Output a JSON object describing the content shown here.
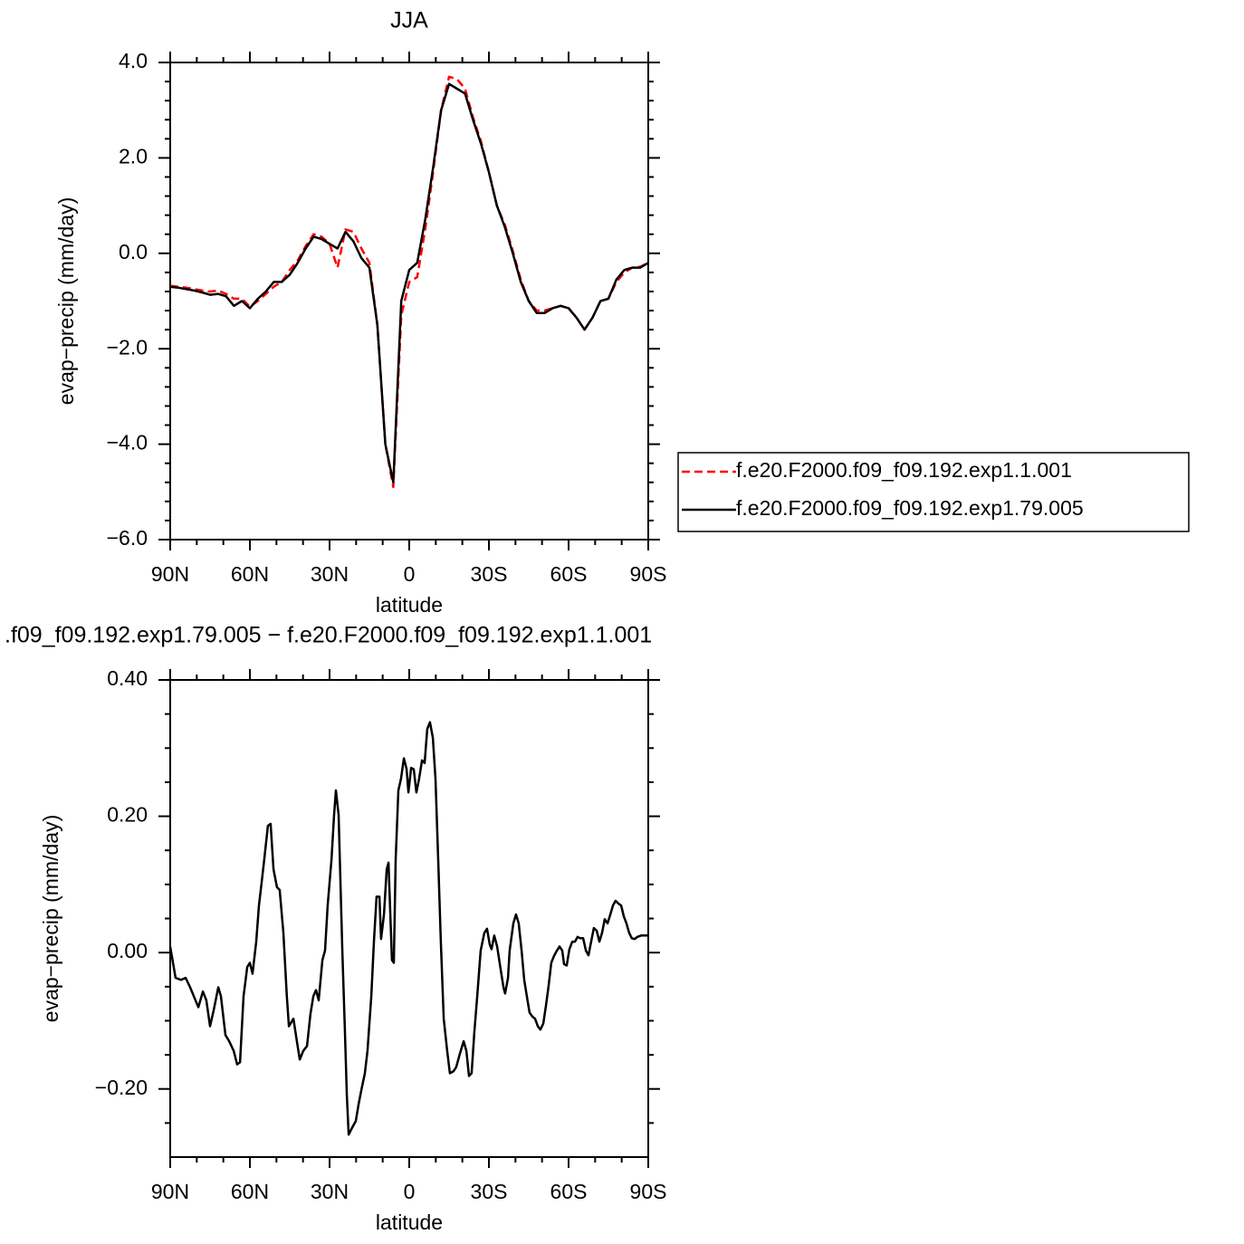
{
  "chart_data": [
    {
      "type": "line",
      "title": "JJA",
      "xlabel": "latitude",
      "ylabel": "evap−precip (mm/day)",
      "xlim": [
        90,
        -90
      ],
      "xticks": [
        {
          "value": 90,
          "label": "90N"
        },
        {
          "value": 60,
          "label": "60N"
        },
        {
          "value": 30,
          "label": "30N"
        },
        0,
        {
          "value": -30,
          "label": "30S"
        },
        {
          "value": -60,
          "label": "60S"
        },
        {
          "value": -90,
          "label": "90S"
        }
      ],
      "xminorticks": [
        80,
        70,
        50,
        40,
        20,
        10,
        -10,
        -20,
        -40,
        -50,
        -70,
        -80
      ],
      "ylim": [
        -6,
        4
      ],
      "yticks": [
        {
          "value": -6,
          "label": "−6.0"
        },
        {
          "value": -4,
          "label": "−4.0"
        },
        {
          "value": -2,
          "label": "−2.0"
        },
        {
          "value": 0,
          "label": "0.0"
        },
        {
          "value": 2,
          "label": "2.0"
        },
        {
          "value": 4,
          "label": "4.0"
        }
      ],
      "yminorticks": [
        3.6,
        3.2,
        2.8,
        2.4,
        1.6,
        1.2,
        0.8,
        0.4,
        -0.4,
        -0.8,
        -1.2,
        -1.6,
        -2.4,
        -2.8,
        -3.2,
        -3.6,
        -4.4,
        -4.8,
        -5.2,
        -5.6
      ],
      "legend": "right",
      "x": [
        90,
        87,
        84,
        81,
        78,
        75,
        72,
        69,
        66,
        63,
        60,
        57,
        54,
        51,
        48,
        45,
        42,
        39,
        36,
        33,
        30,
        27,
        24,
        21,
        18,
        15,
        12,
        9,
        6,
        3,
        0,
        -3,
        -6,
        -9,
        -12,
        -15,
        -18,
        -21,
        -24,
        -27,
        -30,
        -33,
        -36,
        -39,
        -42,
        -45,
        -48,
        -51,
        -54,
        -57,
        -60,
        -63,
        -66,
        -69,
        -72,
        -75,
        -78,
        -81,
        -84,
        -87,
        -90
      ],
      "series": [
        {
          "name": "f.e20.F2000.f09_f09.192.exp1.1.001",
          "color": "#ff0000",
          "linestyle": "dashed",
          "values": [
            -0.68,
            -0.7,
            -0.72,
            -0.75,
            -0.78,
            -0.8,
            -0.78,
            -0.85,
            -0.95,
            -0.95,
            -1.12,
            -1.0,
            -0.85,
            -0.7,
            -0.6,
            -0.35,
            -0.15,
            0.15,
            0.4,
            0.35,
            0.2,
            -0.3,
            0.5,
            0.45,
            0.1,
            -0.2,
            -1.5,
            -4.0,
            -4.9,
            -1.3,
            -0.6,
            -0.5,
            0.5,
            1.7,
            3.0,
            3.7,
            3.65,
            3.45,
            2.85,
            2.35,
            1.7,
            1.0,
            0.6,
            0.05,
            -0.55,
            -1.0,
            -1.2,
            -1.2,
            -1.15,
            -1.1,
            -1.15,
            -1.35,
            -1.6,
            -1.35,
            -1.0,
            -0.95,
            -0.6,
            -0.4,
            -0.3,
            -0.28,
            -0.2
          ]
        },
        {
          "name": "f.e20.F2000.f09_f09.192.exp1.79.005",
          "color": "#000000",
          "linestyle": "solid",
          "values": [
            -0.7,
            -0.72,
            -0.75,
            -0.78,
            -0.82,
            -0.87,
            -0.85,
            -0.9,
            -1.1,
            -1.0,
            -1.15,
            -0.95,
            -0.8,
            -0.6,
            -0.6,
            -0.45,
            -0.2,
            0.1,
            0.35,
            0.3,
            0.2,
            0.1,
            0.45,
            0.25,
            -0.1,
            -0.3,
            -1.5,
            -4.0,
            -4.8,
            -1.0,
            -0.35,
            -0.2,
            0.7,
            1.8,
            3.0,
            3.55,
            3.45,
            3.35,
            2.8,
            2.3,
            1.7,
            1.0,
            0.55,
            0.0,
            -0.6,
            -1.0,
            -1.25,
            -1.25,
            -1.15,
            -1.1,
            -1.15,
            -1.35,
            -1.6,
            -1.35,
            -1.0,
            -0.95,
            -0.55,
            -0.35,
            -0.3,
            -0.3,
            -0.2
          ]
        }
      ]
    },
    {
      "type": "line",
      "title": ".f09_f09.192.exp1.79.005 − f.e20.F2000.f09_f09.192.exp1.1.001",
      "xlabel": "latitude",
      "ylabel": "evap−precip (mm/day)",
      "xlim": [
        90,
        -90
      ],
      "xticks": [
        {
          "value": 90,
          "label": "90N"
        },
        {
          "value": 60,
          "label": "60N"
        },
        {
          "value": 30,
          "label": "30N"
        },
        0,
        {
          "value": -30,
          "label": "30S"
        },
        {
          "value": -60,
          "label": "60S"
        },
        {
          "value": -90,
          "label": "90S"
        }
      ],
      "xminorticks": [
        80,
        70,
        50,
        40,
        20,
        10,
        -10,
        -20,
        -40,
        -50,
        -70,
        -80
      ],
      "ylim": [
        -0.3,
        0.4
      ],
      "yticks": [
        {
          "value": -0.2,
          "label": "−0.20"
        },
        {
          "value": 0,
          "label": "0.00"
        },
        {
          "value": 0.2,
          "label": "0.20"
        },
        {
          "value": 0.4,
          "label": "0.40"
        }
      ],
      "yminorticks": [
        0.35,
        0.3,
        0.25,
        0.15,
        0.1,
        0.05,
        -0.05,
        -0.1,
        -0.15,
        -0.25
      ],
      "color": "#000000",
      "x": [
        90,
        88.0,
        85.9,
        84.2,
        82.5,
        80.5,
        79.4,
        77.7,
        76.4,
        75.0,
        73.6,
        71.9,
        70.9,
        69.2,
        67.8,
        66.1,
        64.8,
        63.7,
        62.4,
        61.0,
        60.0,
        59.0,
        57.6,
        56.6,
        55.6,
        54.6,
        53.2,
        52.2,
        51.1,
        49.8,
        48.8,
        47.4,
        46.1,
        45.3,
        43.6,
        42.3,
        41.2,
        39.9,
        38.5,
        37.2,
        36.1,
        35.1,
        34.1,
        32.7,
        31.7,
        30.7,
        29.3,
        28.3,
        27.6,
        26.6,
        25.2,
        24.2,
        23.5,
        22.8,
        21.5,
        20.1,
        19.1,
        18.1,
        16.7,
        15.7,
        14.3,
        13.3,
        12.3,
        11.2,
        10.6,
        9.5,
        8.5,
        7.8,
        6.5,
        5.8,
        5.1,
        4.1,
        3.1,
        2.0,
        1.0,
        0.3,
        -0.7,
        -1.7,
        -2.7,
        -3.7,
        -4.8,
        -5.8,
        -6.8,
        -7.8,
        -8.9,
        -9.9,
        -10.9,
        -11.9,
        -13.0,
        -14.3,
        -15.3,
        -16.7,
        -17.7,
        -19.1,
        -20.5,
        -21.5,
        -22.5,
        -23.5,
        -24.5,
        -25.6,
        -26.9,
        -28.3,
        -29.3,
        -30.3,
        -31.0,
        -32.0,
        -33.1,
        -34.4,
        -35.5,
        -36.1,
        -37.2,
        -37.8,
        -39.2,
        -40.2,
        -41.2,
        -42.3,
        -43.3,
        -44.3,
        -45.3,
        -46.4,
        -47.4,
        -48.4,
        -49.4,
        -50.5,
        -51.5,
        -52.5,
        -53.5,
        -54.5,
        -55.6,
        -56.6,
        -57.6,
        -58.3,
        -59.3,
        -60.3,
        -61.4,
        -62.4,
        -63.4,
        -64.4,
        -65.5,
        -66.5,
        -67.5,
        -68.5,
        -69.5,
        -70.6,
        -71.6,
        -72.6,
        -73.6,
        -74.7,
        -75.7,
        -76.7,
        -77.7,
        -78.7,
        -79.8,
        -80.8,
        -81.8,
        -82.8,
        -83.8,
        -84.9,
        -85.9,
        -87.3,
        -88.6,
        -90
      ],
      "values": [
        0.009,
        -0.037,
        -0.04,
        -0.037,
        -0.051,
        -0.07,
        -0.08,
        -0.057,
        -0.07,
        -0.108,
        -0.084,
        -0.051,
        -0.064,
        -0.121,
        -0.13,
        -0.144,
        -0.164,
        -0.161,
        -0.064,
        -0.021,
        -0.015,
        -0.031,
        0.016,
        0.069,
        0.102,
        0.136,
        0.186,
        0.189,
        0.122,
        0.096,
        0.092,
        0.029,
        -0.064,
        -0.108,
        -0.097,
        -0.13,
        -0.157,
        -0.144,
        -0.137,
        -0.09,
        -0.064,
        -0.055,
        -0.07,
        -0.011,
        0.003,
        0.069,
        0.136,
        0.202,
        0.238,
        0.202,
        0.003,
        -0.117,
        -0.21,
        -0.267,
        -0.257,
        -0.247,
        -0.223,
        -0.203,
        -0.177,
        -0.144,
        -0.064,
        0.016,
        0.082,
        0.082,
        0.02,
        0.056,
        0.122,
        0.132,
        -0.011,
        -0.015,
        0.136,
        0.238,
        0.255,
        0.285,
        0.269,
        0.235,
        0.271,
        0.269,
        0.235,
        0.255,
        0.282,
        0.278,
        0.328,
        0.338,
        0.315,
        0.255,
        0.136,
        0.016,
        -0.097,
        -0.144,
        -0.177,
        -0.174,
        -0.168,
        -0.148,
        -0.13,
        -0.144,
        -0.181,
        -0.177,
        -0.117,
        -0.064,
        0.003,
        0.029,
        0.035,
        0.012,
        0.005,
        0.025,
        0.009,
        -0.024,
        -0.051,
        -0.06,
        -0.037,
        0.003,
        0.043,
        0.056,
        0.043,
        0.003,
        -0.04,
        -0.064,
        -0.088,
        -0.094,
        -0.097,
        -0.108,
        -0.113,
        -0.104,
        -0.077,
        -0.048,
        -0.015,
        -0.005,
        0.003,
        0.009,
        0.003,
        -0.017,
        -0.019,
        0.005,
        0.016,
        0.016,
        0.023,
        0.021,
        0.021,
        0.003,
        -0.004,
        0.016,
        0.036,
        0.032,
        0.016,
        0.029,
        0.049,
        0.043,
        0.056,
        0.069,
        0.076,
        0.072,
        0.069,
        0.053,
        0.043,
        0.029,
        0.021,
        0.02,
        0.023,
        0.025,
        0.025,
        0.025
      ]
    }
  ]
}
